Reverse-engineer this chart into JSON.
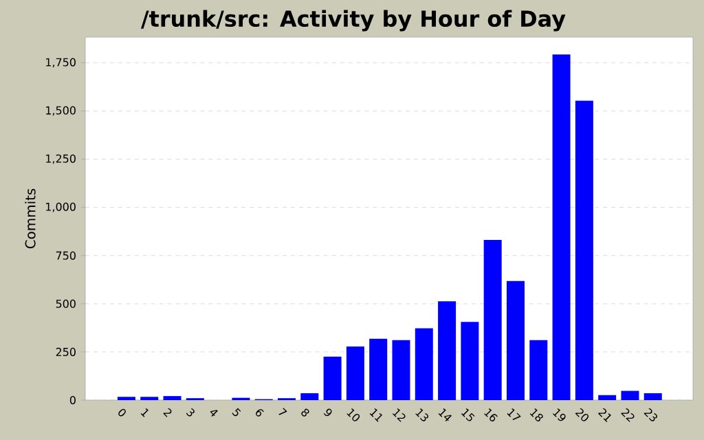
{
  "chart_data": {
    "type": "bar",
    "title": "/trunk/src: Activity by Hour of Day",
    "ylabel": "Commits",
    "categories": [
      "0",
      "1",
      "2",
      "3",
      "4",
      "5",
      "6",
      "7",
      "8",
      "9",
      "10",
      "11",
      "12",
      "13",
      "14",
      "15",
      "16",
      "17",
      "18",
      "19",
      "20",
      "21",
      "22",
      "23"
    ],
    "values": [
      17,
      17,
      21,
      10,
      0,
      12,
      5,
      10,
      36,
      226,
      278,
      318,
      311,
      373,
      513,
      406,
      831,
      618,
      311,
      1793,
      1553,
      26,
      48,
      36
    ],
    "color": "#0000ff",
    "ylim": [
      0,
      1883
    ],
    "yticks": [
      0,
      250,
      500,
      750,
      {
        "value": 1000,
        "label": "1,000"
      },
      {
        "value": 1250,
        "label": "1,250"
      },
      {
        "value": 1500,
        "label": "1,500"
      },
      {
        "value": 1750,
        "label": "1,750"
      }
    ],
    "grid": "y"
  }
}
